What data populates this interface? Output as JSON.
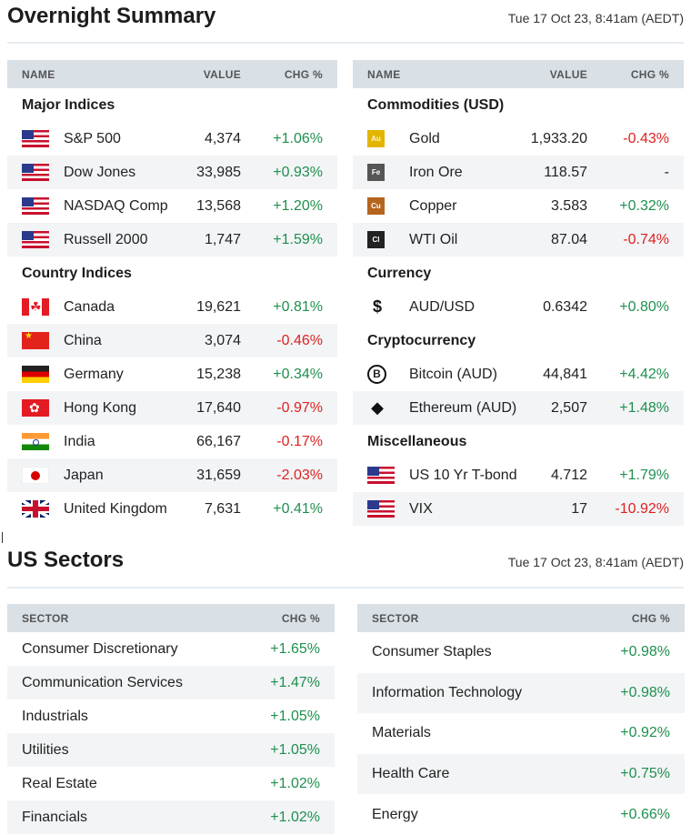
{
  "overnight": {
    "title": "Overnight Summary",
    "timestamp": "Tue 17 Oct 23, 8:41am (AEDT)",
    "left": {
      "headers": {
        "name": "NAME",
        "value": "VALUE",
        "chg": "CHG %"
      },
      "groups": [
        {
          "label": "Major Indices",
          "rows": [
            {
              "icon": "us-flag-icon",
              "name": "S&P 500",
              "value": "4,374",
              "chg": "+1.06%"
            },
            {
              "icon": "us-flag-icon",
              "name": "Dow Jones",
              "value": "33,985",
              "chg": "+0.93%"
            },
            {
              "icon": "us-flag-icon",
              "name": "NASDAQ Comp",
              "value": "13,568",
              "chg": "+1.20%"
            },
            {
              "icon": "us-flag-icon",
              "name": "Russell 2000",
              "value": "1,747",
              "chg": "+1.59%"
            }
          ]
        },
        {
          "label": "Country Indices",
          "rows": [
            {
              "icon": "canada-flag-icon",
              "name": "Canada",
              "value": "19,621",
              "chg": "+0.81%"
            },
            {
              "icon": "china-flag-icon",
              "name": "China",
              "value": "3,074",
              "chg": "-0.46%"
            },
            {
              "icon": "germany-flag-icon",
              "name": "Germany",
              "value": "15,238",
              "chg": "+0.34%"
            },
            {
              "icon": "hong-kong-flag-icon",
              "name": "Hong Kong",
              "value": "17,640",
              "chg": "-0.97%"
            },
            {
              "icon": "india-flag-icon",
              "name": "India",
              "value": "66,167",
              "chg": "-0.17%"
            },
            {
              "icon": "japan-flag-icon",
              "name": "Japan",
              "value": "31,659",
              "chg": "-2.03%"
            },
            {
              "icon": "uk-flag-icon",
              "name": "United Kingdom",
              "value": "7,631",
              "chg": "+0.41%"
            }
          ]
        }
      ]
    },
    "right": {
      "headers": {
        "name": "NAME",
        "value": "VALUE",
        "chg": "CHG %"
      },
      "groups": [
        {
          "label": "Commodities (USD)",
          "rows": [
            {
              "icon": "gold-icon",
              "chip": "Au",
              "name": "Gold",
              "value": "1,933.20",
              "chg": "-0.43%"
            },
            {
              "icon": "iron-ore-icon",
              "chip": "Fe",
              "name": "Iron Ore",
              "value": "118.57",
              "chg": "-"
            },
            {
              "icon": "copper-icon",
              "chip": "Cu",
              "name": "Copper",
              "value": "3.583",
              "chg": "+0.32%"
            },
            {
              "icon": "wti-oil-icon",
              "chip": "Cl",
              "name": "WTI Oil",
              "value": "87.04",
              "chg": "-0.74%"
            }
          ]
        },
        {
          "label": "Currency",
          "rows": [
            {
              "icon": "dollar-icon",
              "glyph": "$",
              "name": "AUD/USD",
              "value": "0.6342",
              "chg": "+0.80%"
            }
          ]
        },
        {
          "label": "Cryptocurrency",
          "rows": [
            {
              "icon": "bitcoin-icon",
              "glyph": "B",
              "name": "Bitcoin (AUD)",
              "value": "44,841",
              "chg": "+4.42%"
            },
            {
              "icon": "ethereum-icon",
              "glyph": "◆",
              "name": "Ethereum (AUD)",
              "value": "2,507",
              "chg": "+1.48%"
            }
          ]
        },
        {
          "label": "Miscellaneous",
          "rows": [
            {
              "icon": "us-flag-icon",
              "name": "US 10 Yr T-bond",
              "value": "4.712",
              "chg": "+1.79%"
            },
            {
              "icon": "us-flag-icon",
              "name": "VIX",
              "value": "17",
              "chg": "-10.92%"
            }
          ]
        }
      ]
    }
  },
  "sectors": {
    "title": "US Sectors",
    "timestamp": "Tue 17 Oct 23, 8:41am (AEDT)",
    "headers": {
      "sector": "SECTOR",
      "chg": "CHG %"
    },
    "left": [
      {
        "name": "Consumer Discretionary",
        "chg": "+1.65%"
      },
      {
        "name": "Communication Services",
        "chg": "+1.47%"
      },
      {
        "name": "Industrials",
        "chg": "+1.05%"
      },
      {
        "name": "Utilities",
        "chg": "+1.05%"
      },
      {
        "name": "Real Estate",
        "chg": "+1.02%"
      },
      {
        "name": "Financials",
        "chg": "+1.02%"
      }
    ],
    "right": [
      {
        "name": "Consumer Staples",
        "chg": "+0.98%"
      },
      {
        "name": "Information Technology",
        "chg": "+0.98%"
      },
      {
        "name": "Materials",
        "chg": "+0.92%"
      },
      {
        "name": "Health Care",
        "chg": "+0.75%"
      },
      {
        "name": "Energy",
        "chg": "+0.66%"
      }
    ]
  }
}
